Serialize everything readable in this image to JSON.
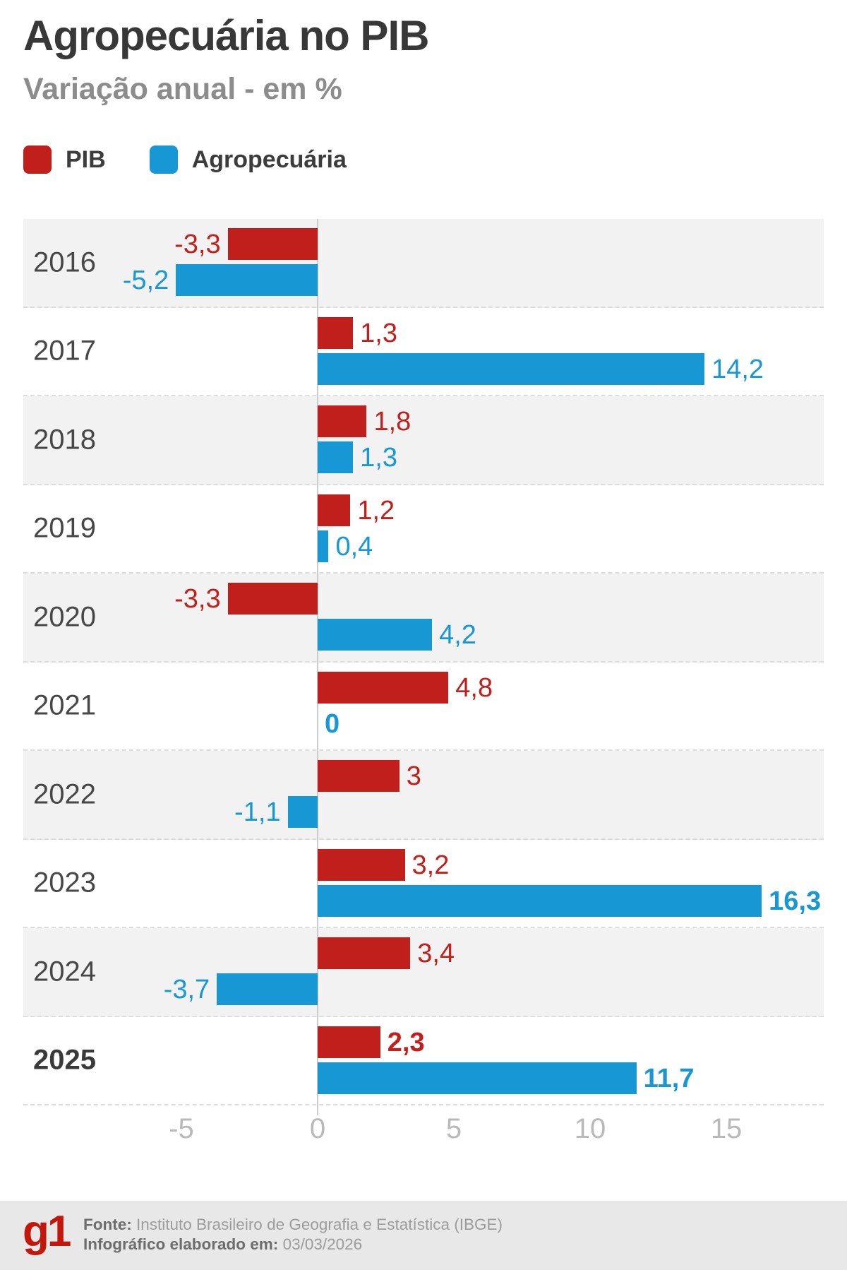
{
  "header": {
    "title": "Agropecuária no PIB",
    "subtitle": "Variação anual - em %"
  },
  "legend": [
    {
      "label": "PIB",
      "color": "#c11f1b"
    },
    {
      "label": "Agropecuária",
      "color": "#1798d5"
    }
  ],
  "chart_data": {
    "type": "bar",
    "orientation": "horizontal",
    "title": "Agropecuária no PIB",
    "subtitle": "Variação anual - em %",
    "unit": "%",
    "categories": [
      "2016",
      "2017",
      "2018",
      "2019",
      "2020",
      "2021",
      "2022",
      "2023",
      "2024",
      "2025"
    ],
    "bold_categories": [
      false,
      false,
      false,
      false,
      false,
      false,
      false,
      false,
      false,
      true
    ],
    "series": [
      {
        "name": "PIB",
        "color": "#c11f1b",
        "values": [
          -3.3,
          1.3,
          1.8,
          1.2,
          -3.3,
          4.8,
          3,
          3.2,
          3.4,
          2.3
        ],
        "labels": [
          "-3,3",
          "1,3",
          "1,8",
          "1,2",
          "-3,3",
          "4,8",
          "3",
          "3,2",
          "3,4",
          "2,3"
        ],
        "bold_labels": [
          false,
          false,
          false,
          false,
          false,
          false,
          false,
          false,
          false,
          true
        ]
      },
      {
        "name": "Agropecuária",
        "color": "#1798d5",
        "values": [
          -5.2,
          14.2,
          1.3,
          0.4,
          4.2,
          0,
          -1.1,
          16.3,
          -3.7,
          11.7
        ],
        "labels": [
          "-5,2",
          "14,2",
          "1,3",
          "0,4",
          "4,2",
          "0",
          "-1,1",
          "16,3",
          "-3,7",
          "11,7"
        ],
        "bold_labels": [
          false,
          false,
          false,
          false,
          false,
          true,
          false,
          true,
          false,
          true
        ]
      }
    ],
    "x_axis": {
      "ticks": [
        -5,
        0,
        5,
        10,
        15
      ],
      "tick_labels": [
        "-5",
        "0",
        "5",
        "10",
        "15"
      ]
    },
    "xlim": [
      -10.8,
      18.6
    ],
    "grid": false,
    "legend_position": "top",
    "row_stripe_colors": [
      "#f2f2f2",
      "#ffffff"
    ]
  },
  "footer": {
    "logo": "g1",
    "source_label": "Fonte:",
    "source": "Instituto Brasileiro de Geografia e Estatística (IBGE)",
    "date_label": "Infográfico elaborado em:",
    "date": "03/03/2026"
  }
}
